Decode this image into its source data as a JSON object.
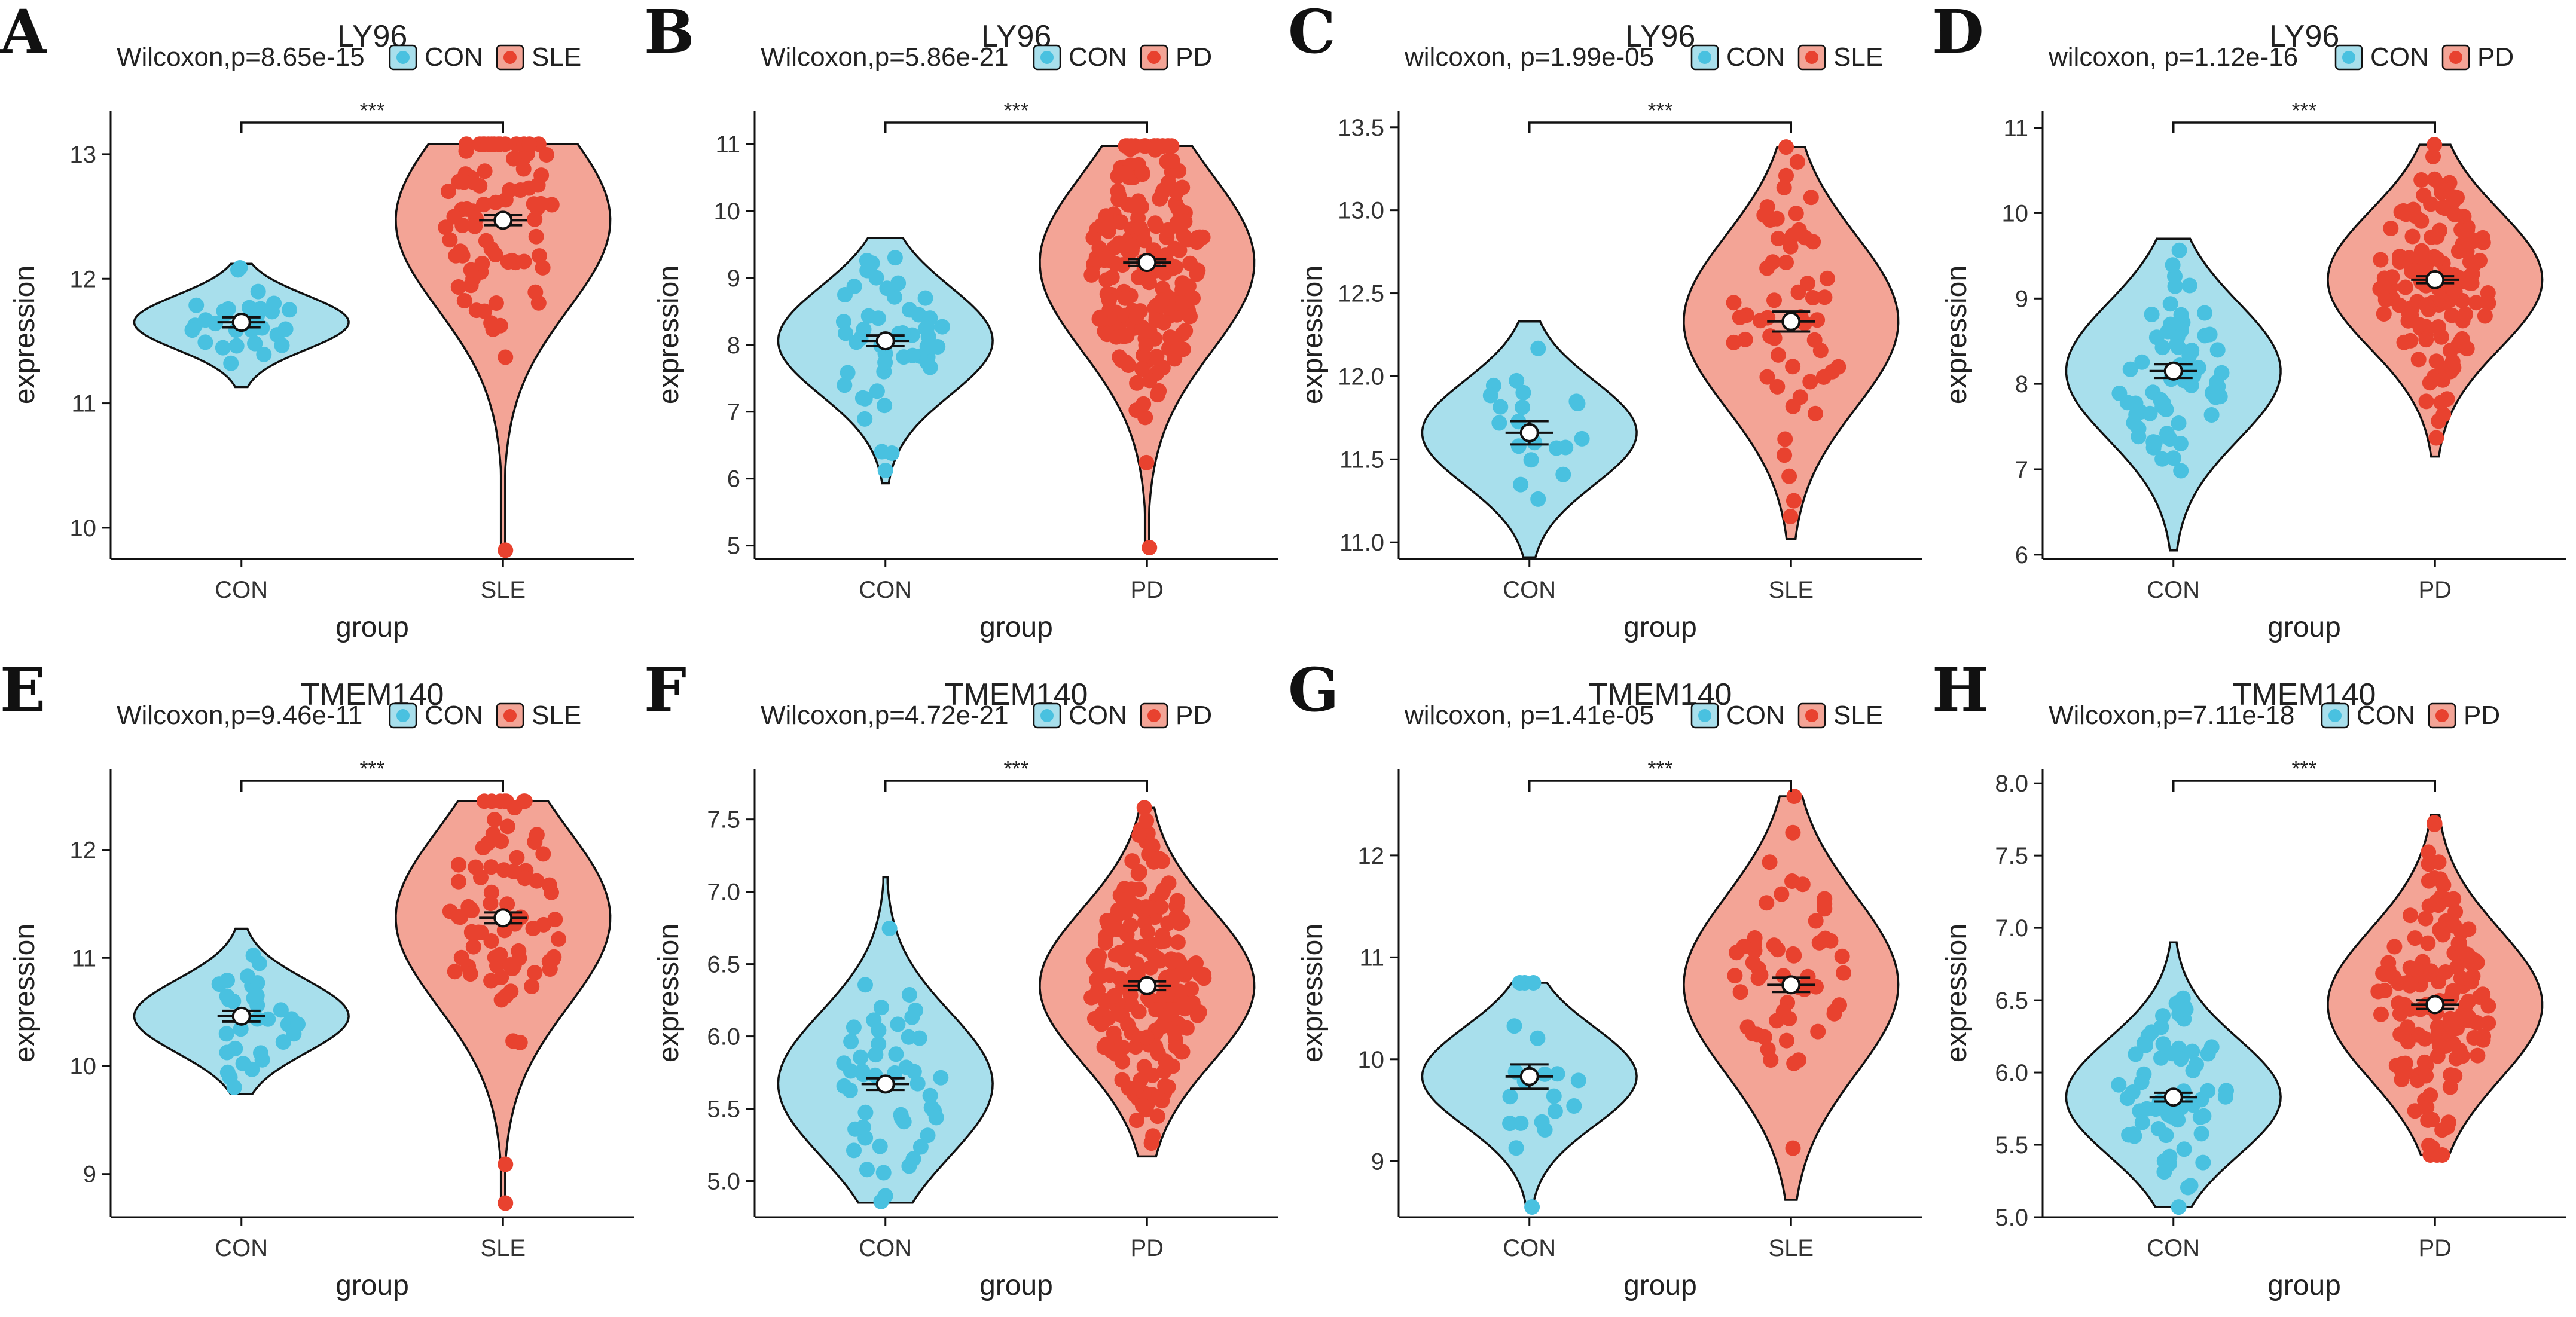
{
  "figure": {
    "xlabel": "group",
    "ylabel": "expression",
    "sig_symbol": "***"
  },
  "colors": {
    "con": "#49C1E0",
    "con_fill": "#A8DFEC",
    "case": "#E8422F",
    "case_fill": "#F3A496",
    "outline": "#111111"
  },
  "chart_data": [
    {
      "letter": "A",
      "type": "violin",
      "title": "LY96",
      "stat_label": "Wilcoxon,p=8.65e-15",
      "categories": [
        "CON",
        "SLE"
      ],
      "legend": [
        "CON",
        "SLE"
      ],
      "ylim": [
        9.75,
        13.35
      ],
      "yticks": [
        10,
        11,
        12,
        13
      ],
      "ytick_labels": [
        "10",
        "11",
        "12",
        "13"
      ],
      "groups": [
        {
          "name": "CON",
          "mean": 11.65,
          "se": 0.04,
          "min": 11.13,
          "max": 12.12,
          "n": 32,
          "seed": 11
        },
        {
          "name": "SLE",
          "mean": 12.47,
          "se": 0.04,
          "min": 9.82,
          "max": 13.08,
          "n": 80,
          "seed": 12,
          "outliers": [
            9.82,
            11.37
          ]
        }
      ]
    },
    {
      "letter": "B",
      "type": "violin",
      "title": "LY96",
      "stat_label": "Wilcoxon,p=5.86e-21",
      "categories": [
        "CON",
        "PD"
      ],
      "legend": [
        "CON",
        "PD"
      ],
      "ylim": [
        4.8,
        11.5
      ],
      "yticks": [
        5,
        6,
        7,
        8,
        9,
        10,
        11
      ],
      "ytick_labels": [
        "5",
        "6",
        "7",
        "8",
        "9",
        "10",
        "11"
      ],
      "groups": [
        {
          "name": "CON",
          "mean": 8.06,
          "se": 0.08,
          "min": 5.93,
          "max": 9.6,
          "n": 50,
          "seed": 21
        },
        {
          "name": "PD",
          "mean": 9.23,
          "se": 0.05,
          "min": 4.97,
          "max": 10.97,
          "n": 205,
          "seed": 22,
          "outliers": [
            4.97
          ]
        }
      ]
    },
    {
      "letter": "C",
      "type": "violin",
      "title": "LY96",
      "stat_label": "wilcoxon, p=1.99e-05",
      "categories": [
        "CON",
        "SLE"
      ],
      "legend": [
        "CON",
        "SLE"
      ],
      "ylim": [
        10.9,
        13.6
      ],
      "yticks": [
        11.0,
        11.5,
        12.0,
        12.5,
        13.0,
        13.5
      ],
      "ytick_labels": [
        "11.0",
        "11.5",
        "12.0",
        "12.5",
        "13.0",
        "13.5"
      ],
      "groups": [
        {
          "name": "CON",
          "mean": 11.66,
          "se": 0.07,
          "min": 10.91,
          "max": 12.33,
          "n": 20,
          "seed": 31
        },
        {
          "name": "SLE",
          "mean": 12.33,
          "se": 0.06,
          "min": 11.02,
          "max": 13.38,
          "n": 55,
          "seed": 32
        }
      ]
    },
    {
      "letter": "D",
      "type": "violin",
      "title": "LY96",
      "stat_label": "wilcoxon, p=1.12e-16",
      "categories": [
        "CON",
        "PD"
      ],
      "legend": [
        "CON",
        "PD"
      ],
      "ylim": [
        5.95,
        11.2
      ],
      "yticks": [
        6,
        7,
        8,
        9,
        10,
        11
      ],
      "ytick_labels": [
        "6",
        "7",
        "8",
        "9",
        "10",
        "11"
      ],
      "groups": [
        {
          "name": "CON",
          "mean": 8.15,
          "se": 0.08,
          "min": 6.05,
          "max": 9.7,
          "n": 65,
          "seed": 41
        },
        {
          "name": "PD",
          "mean": 9.22,
          "se": 0.04,
          "min": 7.15,
          "max": 10.8,
          "n": 140,
          "seed": 42
        }
      ]
    },
    {
      "letter": "E",
      "type": "violin",
      "title": "TMEM140",
      "stat_label": "Wilcoxon,p=9.46e-11",
      "categories": [
        "CON",
        "SLE"
      ],
      "legend": [
        "CON",
        "SLE"
      ],
      "ylim": [
        8.6,
        12.75
      ],
      "yticks": [
        9,
        10,
        11,
        12
      ],
      "ytick_labels": [
        "9",
        "10",
        "11",
        "12"
      ],
      "groups": [
        {
          "name": "CON",
          "mean": 10.46,
          "se": 0.05,
          "min": 9.74,
          "max": 11.27,
          "n": 32,
          "seed": 51
        },
        {
          "name": "SLE",
          "mean": 11.37,
          "se": 0.05,
          "min": 8.72,
          "max": 12.45,
          "n": 80,
          "seed": 52,
          "outliers": [
            8.73,
            9.09
          ]
        }
      ]
    },
    {
      "letter": "F",
      "type": "violin",
      "title": "TMEM140",
      "stat_label": "Wilcoxon,p=4.72e-21",
      "categories": [
        "CON",
        "PD"
      ],
      "legend": [
        "CON",
        "PD"
      ],
      "ylim": [
        4.75,
        7.85
      ],
      "yticks": [
        5.0,
        5.5,
        6.0,
        6.5,
        7.0,
        7.5
      ],
      "ytick_labels": [
        "5.0",
        "5.5",
        "6.0",
        "6.5",
        "7.0",
        "7.5"
      ],
      "groups": [
        {
          "name": "CON",
          "mean": 5.67,
          "se": 0.04,
          "min": 4.85,
          "max": 7.1,
          "n": 50,
          "seed": 61
        },
        {
          "name": "PD",
          "mean": 6.35,
          "se": 0.03,
          "min": 5.17,
          "max": 7.58,
          "n": 205,
          "seed": 62
        }
      ]
    },
    {
      "letter": "G",
      "type": "violin",
      "title": "TMEM140",
      "stat_label": "wilcoxon, p=1.41e-05",
      "categories": [
        "CON",
        "SLE"
      ],
      "legend": [
        "CON",
        "SLE"
      ],
      "ylim": [
        8.45,
        12.85
      ],
      "yticks": [
        9,
        10,
        11,
        12
      ],
      "ytick_labels": [
        "9",
        "10",
        "11",
        "12"
      ],
      "groups": [
        {
          "name": "CON",
          "mean": 9.83,
          "se": 0.12,
          "min": 8.55,
          "max": 10.75,
          "n": 20,
          "seed": 71
        },
        {
          "name": "SLE",
          "mean": 10.73,
          "se": 0.07,
          "min": 8.62,
          "max": 12.58,
          "n": 55,
          "seed": 72
        }
      ]
    },
    {
      "letter": "H",
      "type": "violin",
      "title": "TMEM140",
      "stat_label": "Wilcoxon,p=7.11e-18",
      "categories": [
        "CON",
        "PD"
      ],
      "legend": [
        "CON",
        "PD"
      ],
      "ylim": [
        5.0,
        8.1
      ],
      "yticks": [
        5.0,
        5.5,
        6.0,
        6.5,
        7.0,
        7.5,
        8.0
      ],
      "ytick_labels": [
        "5.0",
        "5.5",
        "6.0",
        "6.5",
        "7.0",
        "7.5",
        "8.0"
      ],
      "groups": [
        {
          "name": "CON",
          "mean": 5.83,
          "se": 0.03,
          "min": 5.07,
          "max": 6.9,
          "n": 65,
          "seed": 81
        },
        {
          "name": "PD",
          "mean": 6.47,
          "se": 0.03,
          "min": 5.43,
          "max": 7.78,
          "n": 140,
          "seed": 82
        }
      ]
    }
  ]
}
